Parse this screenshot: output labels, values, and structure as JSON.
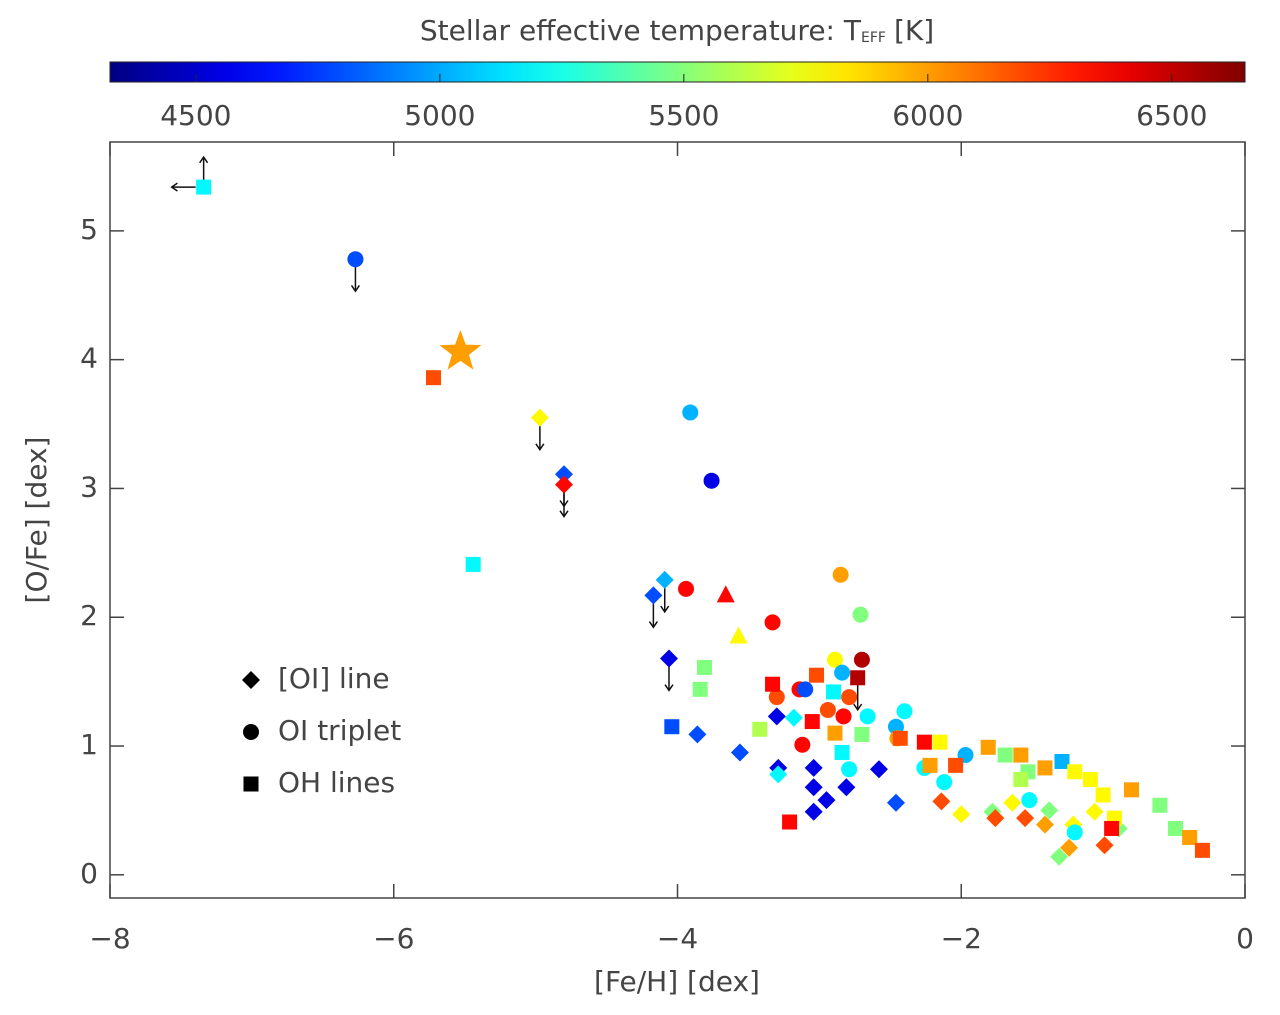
{
  "chart_data": {
    "type": "scatter",
    "colorbar_label": [
      "Stellar effective temperature: T",
      "EFF",
      "[K]"
    ],
    "clim": [
      4324,
      6650
    ],
    "cticks": [
      4500,
      5000,
      5500,
      6000,
      6500
    ],
    "colormap": "jet",
    "xlabel": "[Fe/H] [dex]",
    "ylabel": "[O/Fe] [dex]",
    "xlim": [
      -8,
      0
    ],
    "ylim": [
      -0.18,
      5.69
    ],
    "xticks": [
      {
        "value": -8,
        "label": "−8"
      },
      {
        "value": -6,
        "label": "−6"
      },
      {
        "value": -4,
        "label": "−4"
      },
      {
        "value": -2,
        "label": "−2"
      },
      0
    ],
    "yticks": [
      0,
      1,
      2,
      3,
      4,
      5
    ],
    "series": [
      {
        "name": "[OI] line",
        "marker": "diamond",
        "x": [
          -4.97,
          -4.8,
          -4.8,
          -4.17,
          -4.09,
          -4.06,
          -3.86,
          -3.56,
          -3.3,
          -3.29,
          -3.29,
          -3.18,
          -3.04,
          -3.04,
          -3.04,
          -2.95,
          -2.81,
          -2.58,
          -2.46,
          -2.14,
          -2.0,
          -1.78,
          -1.76,
          -1.64,
          -1.55,
          -1.41,
          -1.38,
          -1.31,
          -1.24,
          -0.99,
          -1.06,
          -0.89,
          -1.21
        ],
        "y": [
          3.55,
          3.11,
          3.03,
          2.17,
          2.29,
          1.68,
          1.09,
          0.95,
          1.23,
          0.83,
          0.78,
          1.22,
          0.83,
          0.68,
          0.49,
          0.58,
          0.68,
          0.82,
          0.56,
          0.57,
          0.47,
          0.49,
          0.44,
          0.56,
          0.44,
          0.39,
          0.5,
          0.14,
          0.21,
          0.23,
          0.49,
          0.36,
          0.39
        ],
        "teff": [
          5790,
          4790,
          6350,
          4790,
          5020,
          4560,
          4790,
          4790,
          4560,
          4560,
          5185,
          5185,
          4560,
          4560,
          4560,
          4560,
          4560,
          4560,
          4790,
          6185,
          5790,
          5490,
          6185,
          5790,
          6185,
          6000,
          5490,
          5490,
          6000,
          6185,
          5790,
          5490,
          5790
        ],
        "limits": [
          "down",
          "down",
          "down",
          "down",
          "down",
          "down",
          null,
          null,
          null,
          null,
          null,
          null,
          null,
          null,
          null,
          null,
          null,
          null,
          null,
          null,
          null,
          null,
          null,
          null,
          null,
          null,
          null,
          null,
          null,
          null,
          null,
          null,
          null
        ]
      },
      {
        "name": "OI triplet",
        "marker": "circle",
        "x": [
          -6.27,
          -3.91,
          -3.76,
          -3.94,
          -3.33,
          -2.85,
          -2.71,
          -2.7,
          -2.89,
          -2.84,
          -3.3,
          -3.14,
          -3.1,
          -2.79,
          -2.94,
          -2.66,
          -3.12,
          -2.83,
          -2.46,
          -2.4,
          -2.45,
          -1.97,
          -2.26,
          -2.12,
          -1.52,
          -1.2,
          -2.79
        ],
        "y": [
          4.78,
          3.59,
          3.06,
          2.22,
          1.96,
          2.33,
          2.02,
          1.67,
          1.67,
          1.57,
          1.38,
          1.44,
          1.44,
          1.38,
          1.28,
          1.23,
          1.01,
          1.23,
          1.15,
          1.27,
          1.06,
          0.93,
          0.83,
          0.72,
          0.58,
          0.33,
          0.82
        ],
        "teff": [
          4790,
          5020,
          4560,
          6350,
          6350,
          6000,
          5490,
          6535,
          5790,
          5020,
          6185,
          6350,
          4790,
          6185,
          6185,
          5185,
          6350,
          6350,
          5020,
          5185,
          6000,
          5020,
          5185,
          5185,
          5185,
          5185,
          5185
        ],
        "limits": [
          "down",
          null,
          null,
          null,
          null,
          null,
          null,
          null,
          null,
          null,
          null,
          null,
          null,
          null,
          null,
          null,
          null,
          null,
          null,
          null,
          null,
          null,
          null,
          null,
          null,
          null,
          null
        ]
      },
      {
        "name": "OH lines",
        "marker": "square",
        "x": [
          -7.34,
          -5.72,
          -5.44,
          -4.04,
          -3.81,
          -3.84,
          -3.33,
          -3.42,
          -3.21,
          -3.05,
          -3.02,
          -2.89,
          -2.9,
          -2.84,
          -2.73,
          -2.7,
          -2.43,
          -2.26,
          -2.15,
          -2.22,
          -2.04,
          -1.81,
          -1.69,
          -1.58,
          -1.53,
          -1.41,
          -1.29,
          -1.2,
          -1.09,
          -1.0,
          -0.8,
          -0.92,
          -0.94,
          -0.6,
          -0.49,
          -0.39,
          -0.3,
          -1.58
        ],
        "y": [
          5.34,
          3.86,
          2.41,
          1.15,
          1.61,
          1.44,
          1.48,
          1.13,
          0.41,
          1.19,
          1.55,
          1.1,
          1.42,
          0.95,
          1.53,
          1.09,
          1.06,
          1.03,
          1.03,
          0.85,
          0.85,
          0.99,
          0.93,
          0.93,
          0.8,
          0.83,
          0.88,
          0.8,
          0.74,
          0.62,
          0.66,
          0.44,
          0.36,
          0.54,
          0.36,
          0.29,
          0.19,
          0.74
        ],
        "teff": [
          5185,
          6185,
          5185,
          4790,
          5490,
          5490,
          6350,
          5600,
          6350,
          6350,
          6185,
          6000,
          5185,
          5185,
          6535,
          5490,
          6185,
          6350,
          5790,
          6000,
          6185,
          6000,
          5490,
          6000,
          5490,
          6000,
          5020,
          5790,
          5790,
          5790,
          6000,
          5790,
          6350,
          5490,
          5490,
          6000,
          6185,
          5600
        ],
        "limits": [
          "up-left",
          null,
          null,
          null,
          null,
          null,
          null,
          null,
          null,
          null,
          null,
          null,
          null,
          null,
          "down",
          null,
          null,
          null,
          null,
          null,
          null,
          null,
          null,
          null,
          null,
          null,
          null,
          null,
          null,
          null,
          null,
          null,
          null,
          null,
          null,
          null,
          null,
          null
        ]
      },
      {
        "marker": "triangle",
        "x": [
          -3.66,
          -3.57
        ],
        "y": [
          2.17,
          1.85
        ],
        "teff": [
          6350,
          5790
        ],
        "limits": [
          null,
          null
        ]
      },
      {
        "marker": "star",
        "x": [
          -5.53
        ],
        "y": [
          4.06
        ],
        "teff": [
          6000
        ],
        "limits": [
          null
        ]
      }
    ]
  }
}
